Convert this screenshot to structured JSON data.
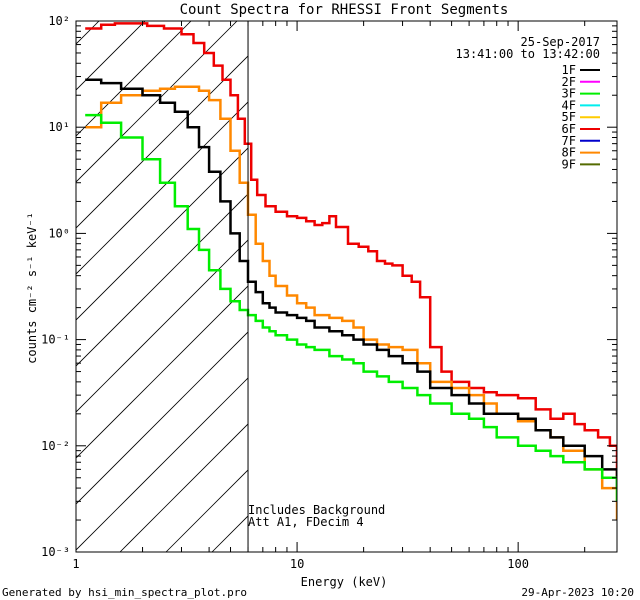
{
  "chart_data": {
    "type": "line",
    "title": "Count Spectra for RHESSI Front Segments",
    "xlabel": "Energy (keV)",
    "ylabel": "counts cm⁻² s⁻¹ keV⁻¹",
    "x_scale": "log",
    "y_scale": "log",
    "xlim": [
      1,
      280
    ],
    "ylim": [
      0.001,
      100
    ],
    "x_ticks": [
      1,
      10,
      100
    ],
    "x_tick_labels": [
      "1",
      "10",
      "100"
    ],
    "y_ticks": [
      0.001,
      0.01,
      0.1,
      1,
      10,
      100
    ],
    "y_tick_labels": [
      "10⁻³",
      "10⁻²",
      "10⁻¹",
      "10⁰",
      "10¹",
      "10²"
    ],
    "shaded_region": {
      "from_keV": 1,
      "to_keV": 6,
      "style": "diagonal hatch"
    },
    "legend": {
      "position": "top-right",
      "date": "25-Sep-2017",
      "time_range": "13:41:00 to 13:42:00",
      "entries": [
        {
          "label": "1F",
          "color": "#000000"
        },
        {
          "label": "2F",
          "color": "#ff00ff"
        },
        {
          "label": "3F",
          "color": "#00ee00"
        },
        {
          "label": "4F",
          "color": "#00eeee"
        },
        {
          "label": "5F",
          "color": "#ffcc00"
        },
        {
          "label": "6F",
          "color": "#ee0000"
        },
        {
          "label": "7F",
          "color": "#0000cc"
        },
        {
          "label": "8F",
          "color": "#ff8800"
        },
        {
          "label": "9F",
          "color": "#556b00"
        }
      ]
    },
    "annotations": [
      "Includes Background",
      "Att A1, FDecim 4"
    ],
    "series": [
      {
        "name": "6F",
        "color": "#ee0000",
        "x": [
          1.1,
          1.3,
          1.5,
          1.8,
          2.1,
          2.5,
          3.0,
          3.4,
          3.8,
          4.2,
          4.6,
          5.0,
          5.4,
          5.8,
          6.2,
          6.6,
          7.2,
          8.0,
          9.0,
          10.0,
          11.0,
          12.0,
          13.0,
          14.0,
          15.0,
          17.0,
          19.0,
          21.0,
          23.0,
          25.0,
          27.0,
          30.0,
          33.0,
          36.0,
          40.0,
          45.0,
          50.0,
          60.0,
          70.0,
          80.0,
          90.0,
          100.0,
          120.0,
          140.0,
          160.0,
          180.0,
          200.0,
          230.0,
          260.0,
          280.0
        ],
        "y": [
          85,
          92,
          95,
          95,
          90,
          85,
          75,
          62,
          50,
          38,
          28,
          20,
          12,
          7,
          3.2,
          2.3,
          1.8,
          1.6,
          1.45,
          1.4,
          1.3,
          1.2,
          1.25,
          1.45,
          1.15,
          0.8,
          0.75,
          0.68,
          0.55,
          0.52,
          0.5,
          0.4,
          0.35,
          0.25,
          0.085,
          0.05,
          0.04,
          0.035,
          0.032,
          0.03,
          0.03,
          0.028,
          0.022,
          0.018,
          0.02,
          0.016,
          0.014,
          0.012,
          0.01,
          0.005
        ]
      },
      {
        "name": "8F",
        "color": "#ff8800",
        "x": [
          1.1,
          1.3,
          1.6,
          2.0,
          2.4,
          2.8,
          3.2,
          3.6,
          4.0,
          4.5,
          5.0,
          5.5,
          6.0,
          6.5,
          7.0,
          7.5,
          8.0,
          9.0,
          10.0,
          11.0,
          12.0,
          14.0,
          16.0,
          18.0,
          20.0,
          23.0,
          26.0,
          30.0,
          35.0,
          40.0,
          50.0,
          60.0,
          70.0,
          80.0,
          100.0,
          120.0,
          140.0,
          160.0,
          200.0,
          240.0,
          280.0
        ],
        "y": [
          10,
          17,
          20,
          22,
          23,
          24,
          24,
          22,
          18,
          12,
          6,
          3,
          1.5,
          0.8,
          0.55,
          0.4,
          0.32,
          0.26,
          0.22,
          0.2,
          0.17,
          0.16,
          0.15,
          0.13,
          0.1,
          0.09,
          0.085,
          0.08,
          0.06,
          0.04,
          0.035,
          0.03,
          0.025,
          0.02,
          0.017,
          0.014,
          0.012,
          0.009,
          0.006,
          0.004,
          0.002
        ]
      },
      {
        "name": "1F",
        "color": "#000000",
        "x": [
          1.1,
          1.3,
          1.6,
          2.0,
          2.4,
          2.8,
          3.2,
          3.6,
          4.0,
          4.5,
          5.0,
          5.5,
          6.0,
          6.5,
          7.0,
          7.5,
          8.0,
          9.0,
          10.0,
          11.0,
          12.0,
          14.0,
          16.0,
          18.0,
          20.0,
          23.0,
          26.0,
          30.0,
          35.0,
          40.0,
          50.0,
          60.0,
          70.0,
          80.0,
          100.0,
          120.0,
          140.0,
          160.0,
          200.0,
          240.0,
          280.0
        ],
        "y": [
          28,
          26,
          23,
          20,
          17,
          14,
          10,
          6.5,
          3.8,
          2.0,
          1.0,
          0.55,
          0.35,
          0.28,
          0.22,
          0.2,
          0.18,
          0.17,
          0.16,
          0.15,
          0.13,
          0.12,
          0.11,
          0.1,
          0.09,
          0.08,
          0.07,
          0.06,
          0.05,
          0.035,
          0.03,
          0.025,
          0.02,
          0.02,
          0.018,
          0.014,
          0.012,
          0.01,
          0.008,
          0.006,
          0.004
        ]
      },
      {
        "name": "3F",
        "color": "#00ee00",
        "x": [
          1.1,
          1.3,
          1.6,
          2.0,
          2.4,
          2.8,
          3.2,
          3.6,
          4.0,
          4.5,
          5.0,
          5.5,
          6.0,
          6.5,
          7.0,
          7.5,
          8.0,
          9.0,
          10.0,
          11.0,
          12.0,
          14.0,
          16.0,
          18.0,
          20.0,
          23.0,
          26.0,
          30.0,
          35.0,
          40.0,
          50.0,
          60.0,
          70.0,
          80.0,
          100.0,
          120.0,
          140.0,
          160.0,
          200.0,
          240.0,
          280.0
        ],
        "y": [
          13,
          11,
          8.0,
          5.0,
          3.0,
          1.8,
          1.1,
          0.7,
          0.45,
          0.3,
          0.23,
          0.19,
          0.17,
          0.15,
          0.13,
          0.12,
          0.11,
          0.1,
          0.09,
          0.085,
          0.08,
          0.07,
          0.065,
          0.06,
          0.05,
          0.045,
          0.04,
          0.035,
          0.03,
          0.025,
          0.02,
          0.018,
          0.015,
          0.012,
          0.01,
          0.009,
          0.008,
          0.007,
          0.006,
          0.005,
          0.003
        ]
      }
    ]
  },
  "footer": {
    "left": "Generated by hsi_min_spectra_plot.pro",
    "right": "29-Apr-2023 10:20"
  }
}
